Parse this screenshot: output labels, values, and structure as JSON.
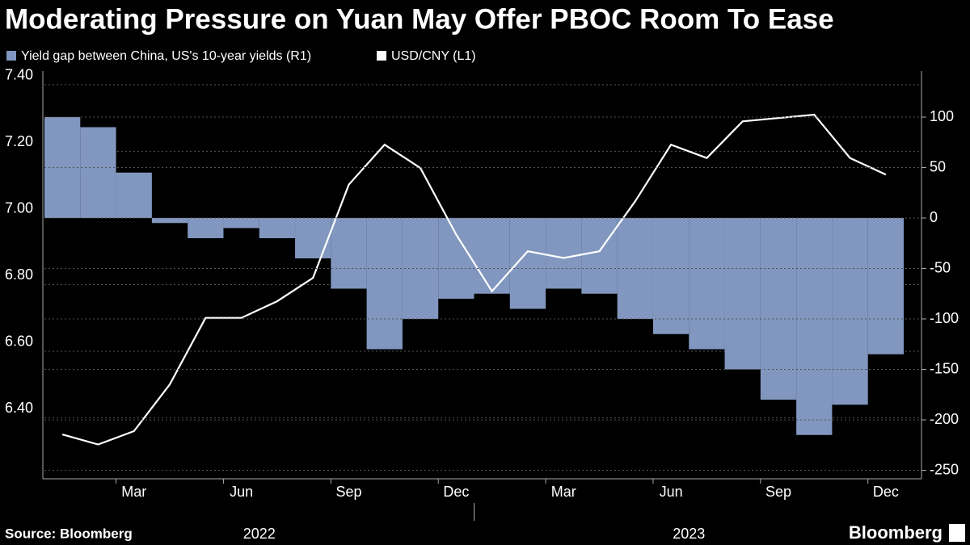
{
  "chart_data": {
    "type": "bar-line",
    "title": "Moderating Pressure on Yuan May Offer PBOC Room To Ease",
    "source": "Source: Bloomberg",
    "brand": "Bloomberg",
    "x": [
      "2022-01",
      "2022-02",
      "2022-03",
      "2022-04",
      "2022-05",
      "2022-06",
      "2022-07",
      "2022-08",
      "2022-09",
      "2022-10",
      "2022-11",
      "2022-12",
      "2023-01",
      "2023-02",
      "2023-03",
      "2023-04",
      "2023-05",
      "2023-06",
      "2023-07",
      "2023-08",
      "2023-09",
      "2023-10",
      "2023-11",
      "2023-12"
    ],
    "series": [
      {
        "name": "Yield gap between China, US's 10-year yields (R1)",
        "color": "#8197bf",
        "axis": "y2",
        "values": [
          100,
          90,
          45,
          -5,
          -20,
          -10,
          -20,
          -40,
          -70,
          -130,
          -100,
          -80,
          -75,
          -90,
          -70,
          -75,
          -100,
          -115,
          -130,
          -150,
          -180,
          -215,
          -185,
          -135
        ]
      },
      {
        "name": "USD/CNY (L1)",
        "color": "#ffffff",
        "axis": "y",
        "values": [
          6.35,
          6.32,
          6.36,
          6.5,
          6.7,
          6.7,
          6.75,
          6.82,
          7.1,
          7.22,
          7.15,
          6.95,
          6.78,
          6.9,
          6.88,
          6.9,
          7.05,
          7.22,
          7.18,
          7.29,
          7.3,
          7.31,
          7.18,
          7.13
        ]
      }
    ],
    "xticks": [
      {
        "value": "2022-03",
        "label": "Mar"
      },
      {
        "value": "2022-06",
        "label": "Jun"
      },
      {
        "value": "2022-09",
        "label": "Sep"
      },
      {
        "value": "2022-12",
        "label": "Dec"
      },
      {
        "value": "2023-03",
        "label": "Mar"
      },
      {
        "value": "2023-06",
        "label": "Jun"
      },
      {
        "value": "2023-09",
        "label": "Sep"
      },
      {
        "value": "2023-12",
        "label": "Dec"
      }
    ],
    "years": [
      "2022",
      "2023"
    ],
    "ylim": [
      6.217,
      7.441
    ],
    "yticks": [
      {
        "value": 6.4,
        "label": "6.40"
      },
      {
        "value": 6.6,
        "label": "6.60"
      },
      {
        "value": 6.8,
        "label": "6.80"
      },
      {
        "value": 7.0,
        "label": "7.00"
      },
      {
        "value": 7.2,
        "label": "7.20"
      },
      {
        "value": 7.4,
        "label": "7.40"
      }
    ],
    "y2lim": [
      -258.4,
      145.6
    ],
    "y2ticks": [
      -250,
      -200,
      -150,
      -100,
      -50,
      0,
      50,
      100
    ],
    "grid": true
  }
}
